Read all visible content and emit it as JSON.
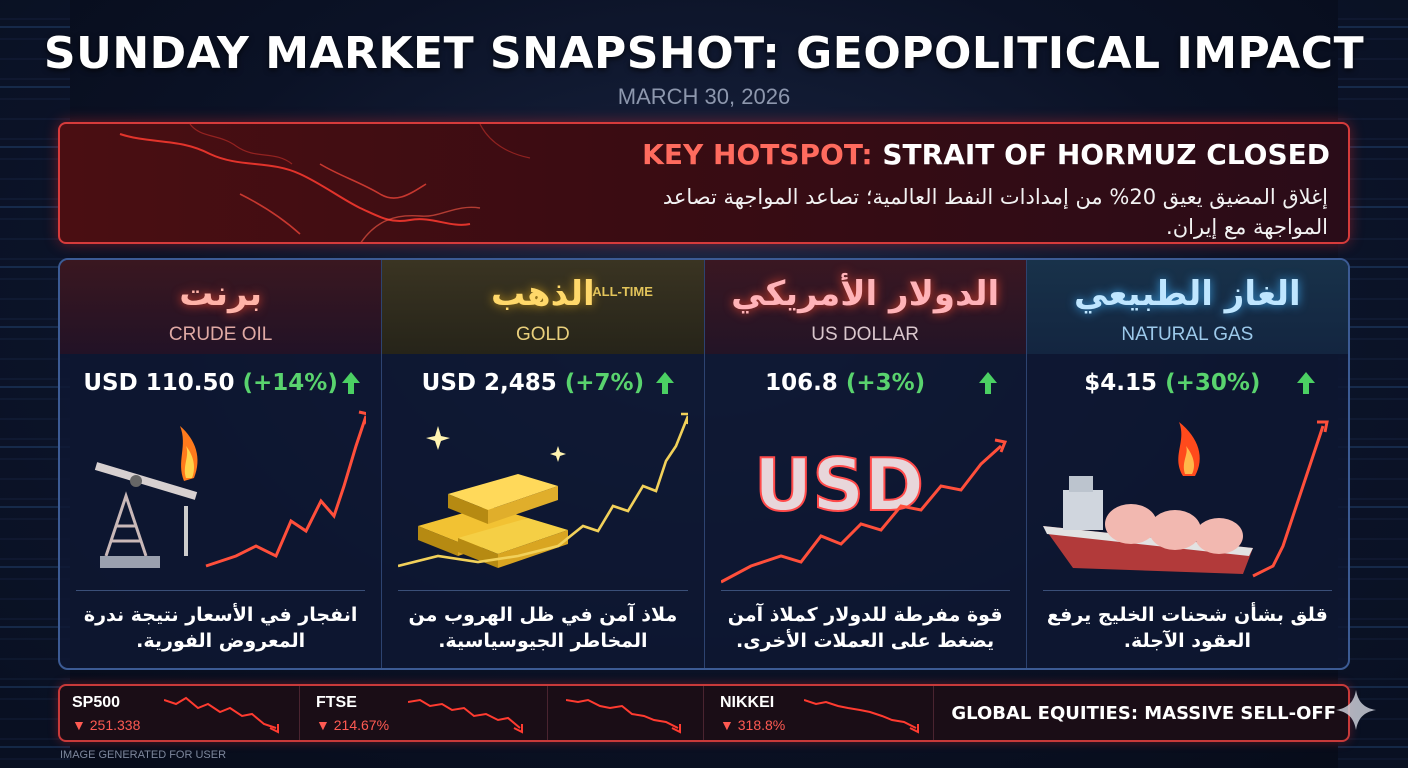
{
  "header": {
    "title": "SUNDAY MARKET SNAPSHOT: GEOPOLITICAL IMPACT",
    "date": "MARCH 30, 2026"
  },
  "hotspot": {
    "label": "KEY HOTSPOT:",
    "headline": "STRAIT OF HORMUZ CLOSED",
    "arabic_text": "إغلاق المضيق يعيق 20% من إمدادات النفط العالمية؛ تصاعد المواجهة تصاعد المواجهة مع إيران."
  },
  "cards": [
    {
      "arabic_name": "برنت",
      "english_name": "CRUDE OIL",
      "price": "USD 110.50",
      "change": "(+14%)",
      "description": "انفجار في الأسعار نتيجة ندرة المعروض الفورية."
    },
    {
      "arabic_name": "الذهب",
      "english_name": "GOLD",
      "price": "USD 2,485",
      "change": "(+7%)",
      "annotation": "ALL-TIME",
      "description": "ملاذ آمن في ظل الهروب من المخاطر الجيوسياسية."
    },
    {
      "arabic_name": "الدولار الأمريكي",
      "english_name": "US DOLLAR",
      "price": "106.8",
      "change": "(+3%)",
      "symbol_text": "USD",
      "description": "قوة مفرطة للدولار كملاذ آمن يضغط على العملات الأخرى."
    },
    {
      "arabic_name": "الغاز الطبيعي",
      "english_name": "NATURAL GAS",
      "price": "$4.15",
      "change": "(+30%)",
      "description": "قلق بشأن شحنات الخليج يرفع العقود الآجلة."
    }
  ],
  "ticker": {
    "items": [
      {
        "symbol": "SP500",
        "value": "▼ 251.338"
      },
      {
        "symbol": "FTSE",
        "value": "▼ 214.67%"
      },
      {
        "symbol": "",
        "value": ""
      },
      {
        "symbol": "NIKKEI",
        "value": "▼ 318.8%"
      }
    ],
    "message": "GLOBAL EQUITIES: MASSIVE SELL-OFF"
  },
  "footer": {
    "note": "IMAGE GENERATED FOR USER"
  },
  "colors": {
    "accent_red": "#d63b3b",
    "up_green": "#59d36e",
    "down_red": "#ff5a52",
    "panel_border": "#3c5b94"
  }
}
